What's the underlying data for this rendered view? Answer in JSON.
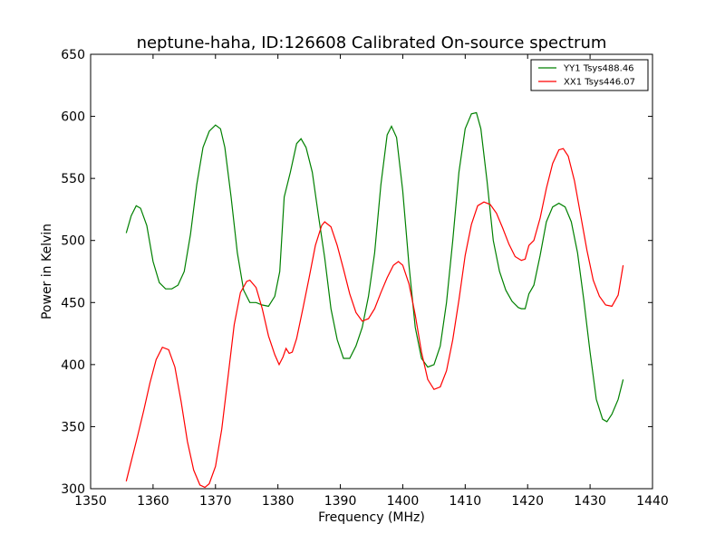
{
  "chart_data": {
    "type": "line",
    "title": "neptune-haha, ID:126608 Calibrated On-source spectrum",
    "xlabel": "Frequency (MHz)",
    "ylabel": "Power in Kelvin",
    "xlim": [
      1350,
      1440
    ],
    "ylim": [
      300,
      650
    ],
    "xticks": [
      1350,
      1360,
      1370,
      1380,
      1390,
      1400,
      1410,
      1420,
      1430,
      1440
    ],
    "yticks": [
      300,
      350,
      400,
      450,
      500,
      550,
      600,
      650
    ],
    "grid": false,
    "legend_position": "top-right",
    "series": [
      {
        "name": "YY1 Tsys488.46",
        "color": "#008000",
        "x": [
          1355.7,
          1356.5,
          1357.3,
          1358,
          1359,
          1360,
          1361,
          1362,
          1363,
          1364,
          1365,
          1366,
          1367,
          1368,
          1369,
          1370,
          1370.8,
          1371.5,
          1372.5,
          1373.5,
          1374.5,
          1375.5,
          1376.5,
          1377.5,
          1378.5,
          1379.5,
          1380.3,
          1381,
          1382,
          1383,
          1383.7,
          1384.5,
          1385.5,
          1386.5,
          1387.5,
          1388.5,
          1389.5,
          1390.5,
          1391.5,
          1392.5,
          1393.5,
          1394.5,
          1395.5,
          1396.5,
          1397.5,
          1398.2,
          1399,
          1400,
          1401,
          1402,
          1403,
          1404,
          1405,
          1406,
          1407,
          1408,
          1409,
          1410,
          1411,
          1411.8,
          1412.5,
          1413.5,
          1414.5,
          1415.5,
          1416.5,
          1417.5,
          1418.5,
          1419,
          1419.6,
          1420.2,
          1421,
          1422,
          1423,
          1424,
          1425,
          1426,
          1427,
          1428,
          1429,
          1430,
          1431,
          1432,
          1432.7,
          1433.5,
          1434.5,
          1435.3
        ],
        "values": [
          506,
          520,
          528,
          526,
          512,
          483,
          466,
          461,
          461,
          464,
          475,
          505,
          545,
          575,
          588,
          593,
          590,
          575,
          535,
          490,
          460,
          450,
          450,
          448,
          447,
          455,
          475,
          535,
          555,
          578,
          582,
          575,
          555,
          520,
          486,
          445,
          420,
          405,
          405,
          415,
          430,
          455,
          490,
          545,
          585,
          592,
          583,
          540,
          480,
          430,
          405,
          398,
          400,
          415,
          450,
          500,
          555,
          590,
          602,
          603,
          590,
          548,
          500,
          475,
          460,
          451,
          446,
          445,
          445,
          457,
          464,
          488,
          515,
          527,
          530,
          527,
          515,
          490,
          452,
          410,
          372,
          356,
          354,
          360,
          372,
          388
        ]
      },
      {
        "name": "XX1 Tsys446.07",
        "color": "#ff0000",
        "x": [
          1355.7,
          1356.5,
          1357.5,
          1358.5,
          1359.5,
          1360.5,
          1361.5,
          1362.5,
          1363.5,
          1364.5,
          1365.5,
          1366.5,
          1367.5,
          1368.3,
          1369,
          1370,
          1371,
          1372,
          1373,
          1374,
          1375,
          1375.5,
          1376.5,
          1377.5,
          1378.5,
          1379.5,
          1380.2,
          1380.8,
          1381.3,
          1381.8,
          1382.3,
          1383,
          1384,
          1385,
          1386,
          1387,
          1387.5,
          1388.5,
          1389.5,
          1390.5,
          1391.5,
          1392.5,
          1393.5,
          1394.5,
          1395.5,
          1396.5,
          1397.5,
          1398.5,
          1399.3,
          1400,
          1401,
          1402,
          1403,
          1404,
          1405,
          1406,
          1407,
          1408,
          1409,
          1410,
          1411,
          1412,
          1413,
          1414,
          1415,
          1416,
          1417,
          1418,
          1419,
          1419.6,
          1420.2,
          1421,
          1422,
          1423,
          1424,
          1425,
          1425.7,
          1426.5,
          1427.5,
          1428.5,
          1429.5,
          1430.5,
          1431.5,
          1432.5,
          1433.5,
          1434.5,
          1435.3
        ],
        "values": [
          306,
          322,
          342,
          363,
          385,
          404,
          414,
          412,
          398,
          370,
          338,
          315,
          303,
          301,
          304,
          318,
          348,
          390,
          432,
          458,
          467,
          468,
          462,
          445,
          423,
          408,
          400,
          406,
          413,
          409,
          410,
          421,
          445,
          470,
          496,
          512,
          515,
          511,
          496,
          477,
          457,
          442,
          435,
          437,
          445,
          458,
          470,
          480,
          483,
          480,
          465,
          440,
          410,
          388,
          380,
          382,
          395,
          420,
          452,
          488,
          513,
          528,
          531,
          529,
          522,
          510,
          497,
          487,
          484,
          485,
          496,
          500,
          518,
          542,
          562,
          573,
          574,
          568,
          548,
          520,
          492,
          468,
          455,
          448,
          447,
          456,
          480
        ]
      }
    ]
  }
}
